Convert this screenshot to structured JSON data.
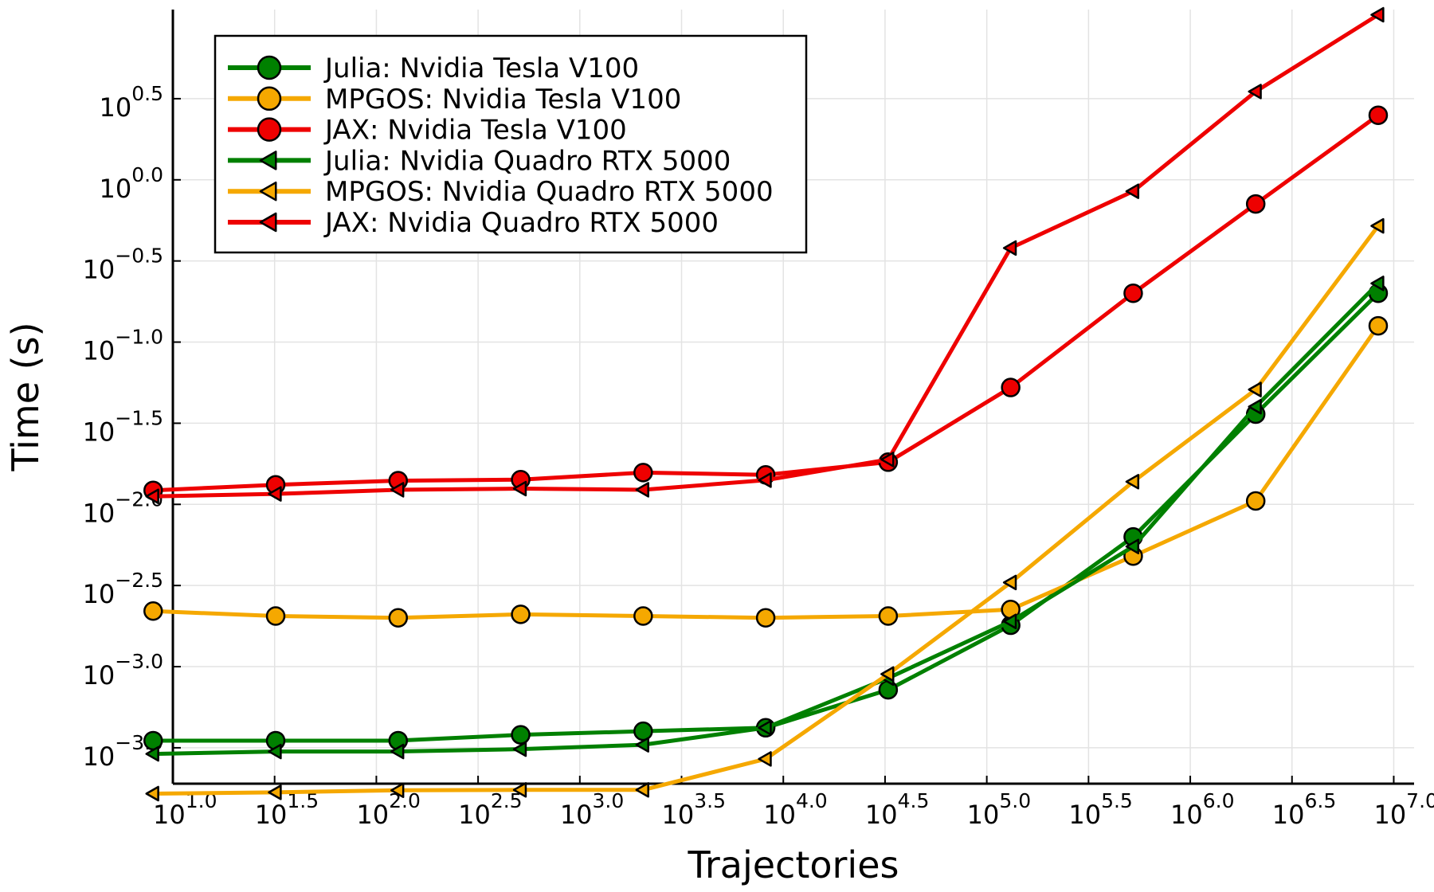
{
  "chart_data": {
    "type": "line",
    "xlabel": "Trajectories",
    "ylabel": "Time (s)",
    "x_scale": "log10",
    "y_scale": "log10",
    "xlim": [
      10,
      12589254
    ],
    "ylim": [
      0.00019,
      11.2
    ],
    "grid": true,
    "legend_position": "top-left",
    "x_ticks": [
      {
        "value": 10,
        "base": "10",
        "exp": "1.0"
      },
      {
        "value": 31.62,
        "base": "10",
        "exp": "1.5"
      },
      {
        "value": 100,
        "base": "10",
        "exp": "2.0"
      },
      {
        "value": 316.2,
        "base": "10",
        "exp": "2.5"
      },
      {
        "value": 1000,
        "base": "10",
        "exp": "3.0"
      },
      {
        "value": 3162,
        "base": "10",
        "exp": "3.5"
      },
      {
        "value": 10000,
        "base": "10",
        "exp": "4.0"
      },
      {
        "value": 31623,
        "base": "10",
        "exp": "4.5"
      },
      {
        "value": 100000,
        "base": "10",
        "exp": "5.0"
      },
      {
        "value": 316228,
        "base": "10",
        "exp": "5.5"
      },
      {
        "value": 1000000,
        "base": "10",
        "exp": "6.0"
      },
      {
        "value": 3162278,
        "base": "10",
        "exp": "6.5"
      },
      {
        "value": 10000000,
        "base": "10",
        "exp": "7.0"
      }
    ],
    "y_ticks": [
      {
        "value": 3.1623,
        "base": "10",
        "exp": "0.5"
      },
      {
        "value": 1.0,
        "base": "10",
        "exp": "0.0"
      },
      {
        "value": 0.31623,
        "base": "10",
        "exp": "−0.5"
      },
      {
        "value": 0.1,
        "base": "10",
        "exp": "−1.0"
      },
      {
        "value": 0.031623,
        "base": "10",
        "exp": "−1.5"
      },
      {
        "value": 0.01,
        "base": "10",
        "exp": "−2.0"
      },
      {
        "value": 0.0031623,
        "base": "10",
        "exp": "−2.5"
      },
      {
        "value": 0.001,
        "base": "10",
        "exp": "−3.0"
      },
      {
        "value": 0.00031623,
        "base": "10",
        "exp": "−3.5"
      }
    ],
    "x": [
      8,
      32,
      128,
      512,
      2048,
      8192,
      32768,
      131072,
      524288,
      2097152,
      8388608
    ],
    "series": [
      {
        "name": "Julia: Nvidia Tesla V100",
        "color": "#008000",
        "marker": "circle",
        "values": [
          0.00035,
          0.00035,
          0.00035,
          0.00038,
          0.0004,
          0.00042,
          0.00072,
          0.0018,
          0.0063,
          0.036,
          0.2
        ]
      },
      {
        "name": "MPGOS: Nvidia Tesla V100",
        "color": "#f5a800",
        "marker": "circle",
        "values": [
          0.0022,
          0.00205,
          0.002,
          0.0021,
          0.00205,
          0.002,
          0.00205,
          0.00225,
          0.0048,
          0.0105,
          0.126
        ]
      },
      {
        "name": "JAX: Nvidia Tesla V100",
        "color": "#ee0000",
        "marker": "circle",
        "values": [
          0.0122,
          0.0132,
          0.014,
          0.0142,
          0.0157,
          0.0152,
          0.0182,
          0.0525,
          0.2,
          0.71,
          2.5
        ]
      },
      {
        "name": "Julia: Nvidia Quadro RTX 5000",
        "color": "#008000",
        "marker": "triangle-left",
        "values": [
          0.00029,
          0.0003,
          0.0003,
          0.00031,
          0.00033,
          0.00042,
          0.00085,
          0.0019,
          0.0055,
          0.04,
          0.23
        ]
      },
      {
        "name": "MPGOS: Nvidia Quadro RTX 5000",
        "color": "#f5a800",
        "marker": "triangle-left",
        "values": [
          0.000165,
          0.000168,
          0.000173,
          0.000174,
          0.000174,
          0.00027,
          0.0009,
          0.0033,
          0.0138,
          0.051,
          0.52
        ]
      },
      {
        "name": "JAX: Nvidia Quadro RTX 5000",
        "color": "#ee0000",
        "marker": "triangle-left",
        "values": [
          0.0112,
          0.0116,
          0.0123,
          0.0125,
          0.0123,
          0.0141,
          0.0189,
          0.38,
          0.85,
          3.5,
          10.4
        ]
      }
    ]
  }
}
